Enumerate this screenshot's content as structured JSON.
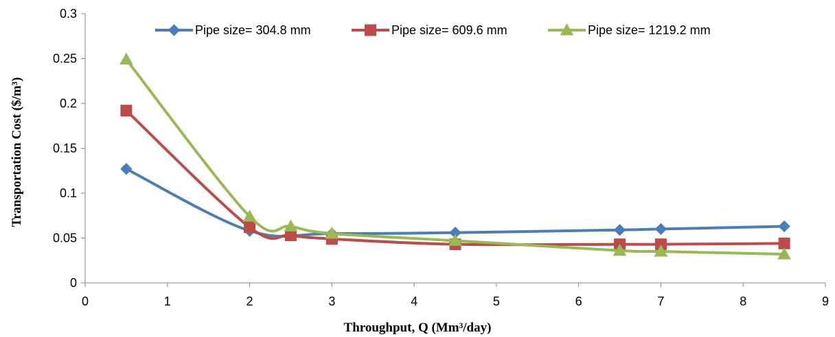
{
  "chart_data": {
    "type": "line",
    "title": "",
    "xlabel": "Throughput, Q (Mm³/day)",
    "ylabel": "Transportation Cost ($/m³)",
    "xlim": [
      0,
      9
    ],
    "ylim": [
      0,
      0.3
    ],
    "x_ticks": [
      "0",
      "1",
      "2",
      "3",
      "4",
      "5",
      "6",
      "7",
      "8",
      "9"
    ],
    "y_ticks": [
      "0",
      "0.05",
      "0.1",
      "0.15",
      "0.2",
      "0.25",
      "0.3"
    ],
    "grid": false,
    "legend_position": "top",
    "series": [
      {
        "name": "Pipe size= 304.8 mm",
        "color": "#4a7ebb",
        "marker": "diamond",
        "x": [
          0.5,
          2,
          3,
          4.5,
          6.5,
          7,
          8.5
        ],
        "values": [
          0.127,
          0.058,
          0.055,
          0.056,
          0.059,
          0.06,
          0.063
        ]
      },
      {
        "name": "Pipe size= 609.6 mm",
        "color": "#be4b48",
        "marker": "square",
        "x": [
          0.5,
          2,
          2.5,
          3,
          4.5,
          6.5,
          7,
          8.5
        ],
        "values": [
          0.192,
          0.062,
          0.053,
          0.049,
          0.043,
          0.043,
          0.043,
          0.044
        ]
      },
      {
        "name": "Pipe size= 1219.2 mm",
        "color": "#98b954",
        "marker": "triangle",
        "x": [
          0.5,
          2,
          2.5,
          3,
          4.5,
          6.5,
          7,
          8.5
        ],
        "values": [
          0.249,
          0.074,
          0.063,
          0.055,
          0.047,
          0.036,
          0.035,
          0.032
        ]
      }
    ]
  }
}
